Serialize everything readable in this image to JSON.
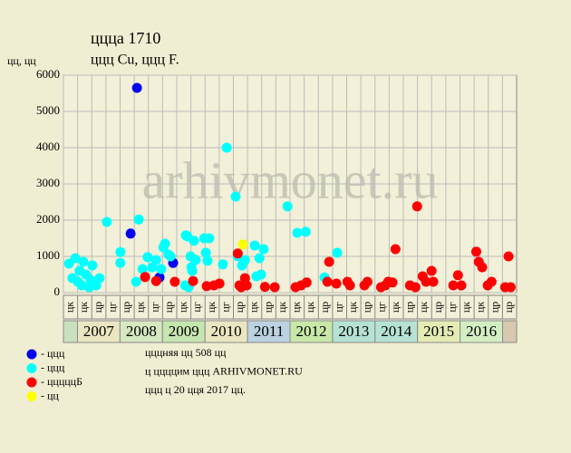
{
  "chart_data": {
    "type": "scatter",
    "title": "ццца 1710",
    "subtitle": "ццц Cu, ццц F.",
    "y_label": "цц, цц",
    "watermark": "arhivmonet.ru",
    "xlim": [
      2006.67,
      2017.33
    ],
    "ylim": [
      0,
      6000
    ],
    "yticks": [
      0,
      1000,
      2000,
      3000,
      4000,
      5000,
      6000
    ],
    "grid": true,
    "column_labels": [
      "цк",
      "цк",
      "цр",
      "цг",
      "цр",
      "цк",
      "цг",
      "цр",
      "цк",
      "цг",
      "цк",
      "цг",
      "цр",
      "цк",
      "цр",
      "цк",
      "цк",
      "цк",
      "цр",
      "цг",
      "цк",
      "цр",
      "цг",
      "цк",
      "цр",
      "цк",
      "цр",
      "цг",
      "цк",
      "цк",
      "цр",
      "цр"
    ],
    "years": [
      "2007",
      "2008",
      "2009",
      "2010",
      "2011",
      "2012",
      "2013",
      "2014",
      "2015",
      "2016"
    ],
    "year_colors": [
      "#ebe6c2",
      "#d6e8c0",
      "#c6e6b0",
      "#ebe6c2",
      "#bcd2e0",
      "#c8e8a8",
      "#b6e2d4",
      "#b6e2d4",
      "#e4ecb4",
      "#d4eec4"
    ],
    "series": [
      {
        "name": "- ццц",
        "color": "#0000ee",
        "x": [
          2008.4,
          2008.25,
          2008.93,
          2009.25
        ],
        "values": [
          5650,
          1630,
          420,
          820
        ]
      },
      {
        "name": "- ццц",
        "color": "#00ffff",
        "x": [
          2006.8,
          2006.88,
          2006.95,
          2007.01,
          2007.05,
          2007.1,
          2007.14,
          2007.2,
          2007.27,
          2007.31,
          2007.35,
          2007.44,
          2007.52,
          2007.69,
          2008.01,
          2008.01,
          2008.38,
          2008.44,
          2008.53,
          2008.65,
          2008.76,
          2008.85,
          2008.97,
          2009.02,
          2009.06,
          2009.14,
          2009.19,
          2009.53,
          2009.55,
          2009.59,
          2009.61,
          2009.66,
          2009.68,
          2009.7,
          2009.74,
          2009.78,
          2009.98,
          2010.02,
          2010.06,
          2010.1,
          2010.42,
          2010.51,
          2010.72,
          2010.77,
          2010.87,
          2010.94,
          2011.17,
          2011.21,
          2011.28,
          2011.32,
          2011.38,
          2011.94,
          2012.17,
          2012.37,
          2012.81,
          2013.11
        ],
        "values": [
          800,
          400,
          950,
          300,
          600,
          200,
          850,
          500,
          150,
          350,
          750,
          200,
          400,
          1950,
          1120,
          820,
          300,
          2020,
          650,
          980,
          700,
          900,
          650,
          1250,
          1350,
          1050,
          1000,
          200,
          1580,
          1550,
          150,
          1000,
          700,
          600,
          1430,
          900,
          1500,
          1100,
          880,
          1500,
          780,
          4000,
          2650,
          1000,
          750,
          900,
          1300,
          450,
          950,
          500,
          1200,
          2380,
          1650,
          1680,
          420,
          1100
        ]
      },
      {
        "name": "- цццццБ",
        "color": "#ff0000",
        "x": [
          2008.59,
          2008.85,
          2009.29,
          2009.72,
          2010.04,
          2010.21,
          2010.34,
          2010.77,
          2010.81,
          2010.85,
          2010.94,
          2010.98,
          2011.41,
          2011.64,
          2012.13,
          2012.26,
          2012.39,
          2012.88,
          2012.92,
          2013.09,
          2013.35,
          2013.41,
          2013.75,
          2013.82,
          2014.14,
          2014.24,
          2014.31,
          2014.41,
          2014.48,
          2014.82,
          2014.95,
          2014.99,
          2015.12,
          2015.2,
          2015.33,
          2015.37,
          2015.84,
          2015.95,
          2016.03,
          2016.38,
          2016.44,
          2016.52,
          2016.65,
          2016.74,
          2017.06,
          2017.14,
          2017.19
        ],
        "values": [
          430,
          320,
          300,
          320,
          180,
          200,
          250,
          1080,
          200,
          150,
          400,
          200,
          160,
          150,
          150,
          200,
          280,
          300,
          850,
          250,
          300,
          200,
          200,
          300,
          150,
          200,
          300,
          280,
          1200,
          200,
          150,
          2380,
          450,
          300,
          600,
          300,
          200,
          480,
          200,
          1130,
          850,
          700,
          200,
          300,
          150,
          1000,
          150
        ]
      },
      {
        "name": "- цц",
        "color": "#ffff00",
        "x": [
          2010.89
        ],
        "values": [
          1330
        ]
      }
    ],
    "notes": [
      "цццняя цц 508 цц",
      "ц ццццим ццц ARHIVMONET.RU",
      "ццц ц 20 цця 2017 цц."
    ]
  }
}
